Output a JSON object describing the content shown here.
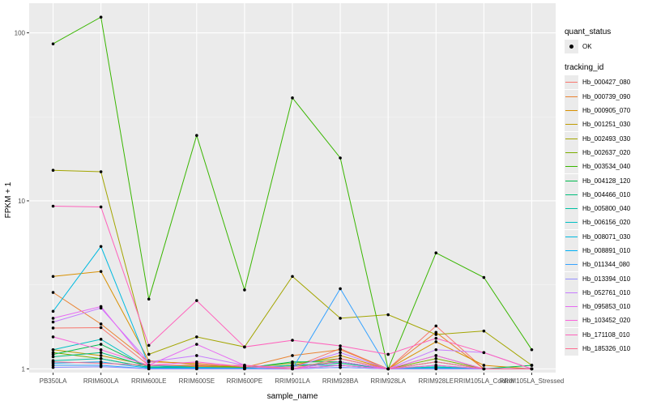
{
  "chart_data": {
    "type": "line",
    "title": "",
    "xlabel": "sample_name",
    "ylabel": "FPKM + 1",
    "y_scale": "log10",
    "ylim": [
      0.95,
      150
    ],
    "y_ticks": [
      1,
      10,
      100
    ],
    "y_tick_labels": [
      "1",
      "10",
      "100"
    ],
    "categories": [
      "PB350LA",
      "RRIM600LA",
      "RRIM600LE",
      "RRIM600SE",
      "RRIM600PE",
      "RRIM901LA",
      "RRIM928BA",
      "RRIM928LA",
      "RRIM928LE",
      "RRIM105LA_Control",
      "RRIM105LA_Stressed"
    ],
    "point_legend_title": "quant_status",
    "point_legend_label": "OK",
    "series_legend_title": "tracking_id",
    "series": [
      {
        "name": "Hb_000427_080",
        "color": "#F8766D",
        "values": [
          1.75,
          1.76,
          1.05,
          1.04,
          1.03,
          1.02,
          1.32,
          1.0,
          1.8,
          1.0,
          1.0
        ]
      },
      {
        "name": "Hb_000739_090",
        "color": "#EA8331",
        "values": [
          2.85,
          1.85,
          1.1,
          1.08,
          1.02,
          1.2,
          1.3,
          1.0,
          1.65,
          1.0,
          1.0
        ]
      },
      {
        "name": "Hb_000905_070",
        "color": "#D89000",
        "values": [
          3.55,
          3.8,
          1.12,
          1.06,
          1.02,
          1.05,
          1.2,
          1.0,
          1.45,
          1.05,
          1.0
        ]
      },
      {
        "name": "Hb_001251_030",
        "color": "#C09B00",
        "values": [
          1.3,
          1.2,
          1.05,
          1.03,
          1.02,
          1.03,
          1.1,
          1.0,
          1.2,
          1.0,
          1.0
        ]
      },
      {
        "name": "Hb_002493_030",
        "color": "#A3A500",
        "values": [
          15.2,
          14.9,
          1.22,
          1.55,
          1.35,
          3.55,
          2.0,
          2.1,
          1.6,
          1.68,
          1.05
        ]
      },
      {
        "name": "Hb_002637_020",
        "color": "#7CAE00",
        "values": [
          1.25,
          1.15,
          1.02,
          1.05,
          1.02,
          1.08,
          1.15,
          1.0,
          1.15,
          1.0,
          1.0
        ]
      },
      {
        "name": "Hb_003534_040",
        "color": "#39B600",
        "values": [
          86,
          124,
          2.6,
          24.5,
          2.95,
          41,
          18,
          1.0,
          4.9,
          3.5,
          1.3
        ]
      },
      {
        "name": "Hb_004128_120",
        "color": "#00BB4E",
        "values": [
          1.22,
          1.4,
          1.02,
          1.01,
          1.01,
          1.1,
          1.1,
          1.0,
          1.1,
          1.0,
          1.05
        ]
      },
      {
        "name": "Hb_004466_010",
        "color": "#00BF7D",
        "values": [
          1.18,
          1.25,
          1.03,
          1.02,
          1.01,
          1.05,
          1.08,
          1.0,
          1.05,
          1.0,
          1.0
        ]
      },
      {
        "name": "Hb_005800_040",
        "color": "#00C1A3",
        "values": [
          1.12,
          1.15,
          1.02,
          1.01,
          1.01,
          1.05,
          1.05,
          1.0,
          1.03,
          1.0,
          1.0
        ]
      },
      {
        "name": "Hb_006156_020",
        "color": "#00BFC4",
        "values": [
          1.3,
          1.5,
          1.01,
          1.01,
          1.0,
          1.0,
          1.05,
          1.0,
          1.02,
          1.0,
          1.0
        ]
      },
      {
        "name": "Hb_008071_030",
        "color": "#00BAE0",
        "values": [
          2.2,
          5.35,
          1.05,
          1.02,
          1.01,
          1.0,
          1.1,
          1.0,
          1.01,
          1.0,
          1.0
        ]
      },
      {
        "name": "Hb_008891_010",
        "color": "#00B0F6",
        "values": [
          1.08,
          1.1,
          1.01,
          1.01,
          1.0,
          1.0,
          1.02,
          1.0,
          1.0,
          1.0,
          1.0
        ]
      },
      {
        "name": "Hb_011344_080",
        "color": "#35A2FF",
        "values": [
          1.05,
          1.05,
          1.0,
          1.0,
          1.0,
          1.0,
          3.0,
          1.0,
          1.0,
          1.0,
          1.0
        ]
      },
      {
        "name": "Hb_013394_010",
        "color": "#9590FF",
        "values": [
          1.02,
          1.03,
          1.0,
          1.0,
          1.0,
          1.0,
          1.02,
          1.0,
          1.0,
          1.0,
          1.0
        ]
      },
      {
        "name": "Hb_052761_010",
        "color": "#C77CFF",
        "values": [
          1.9,
          2.3,
          1.1,
          1.2,
          1.05,
          1.02,
          1.25,
          1.0,
          1.3,
          1.25,
          1.0
        ]
      },
      {
        "name": "Hb_095853_010",
        "color": "#E76BF3",
        "values": [
          2.0,
          2.35,
          1.05,
          1.4,
          1.05,
          1.0,
          1.1,
          1.0,
          1.2,
          1.0,
          1.0
        ]
      },
      {
        "name": "Hb_103452_020",
        "color": "#FA62DB",
        "values": [
          1.55,
          1.3,
          1.05,
          1.1,
          1.03,
          1.0,
          1.05,
          1.0,
          1.05,
          1.0,
          1.0
        ]
      },
      {
        "name": "Hb_171108_010",
        "color": "#FF62BC",
        "values": [
          9.3,
          9.2,
          1.38,
          2.55,
          1.35,
          1.48,
          1.37,
          1.22,
          1.52,
          1.25,
          1.0
        ]
      },
      {
        "name": "Hb_185326_010",
        "color": "#FF6C91",
        "values": [
          1.1,
          1.08,
          1.05,
          1.05,
          1.05,
          1.0,
          1.15,
          1.0,
          1.1,
          1.0,
          1.0
        ]
      }
    ]
  }
}
